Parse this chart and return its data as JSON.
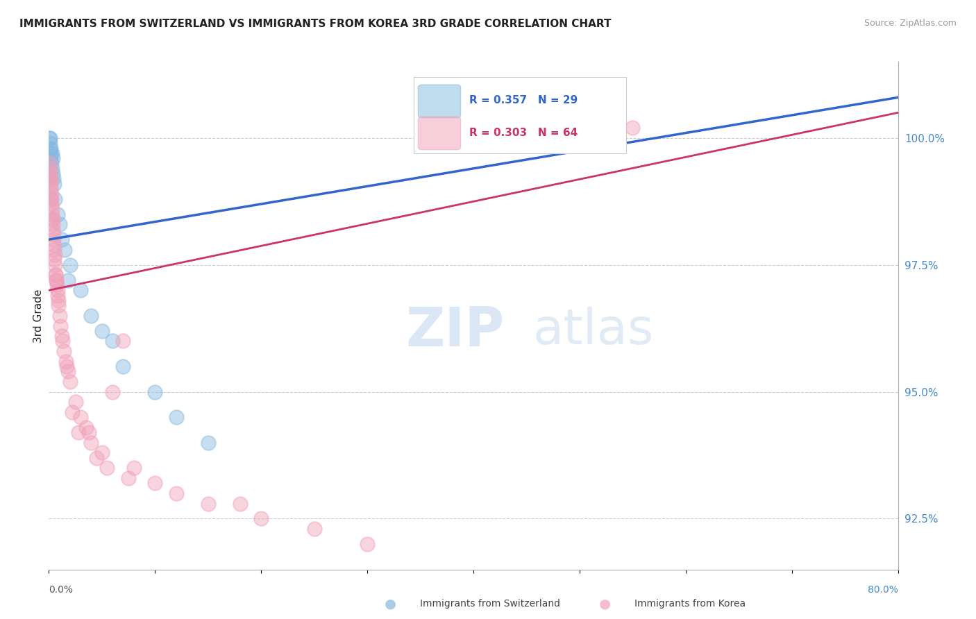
{
  "title": "IMMIGRANTS FROM SWITZERLAND VS IMMIGRANTS FROM KOREA 3RD GRADE CORRELATION CHART",
  "source": "Source: ZipAtlas.com",
  "ylabel": "3rd Grade",
  "xlim": [
    0.0,
    80.0
  ],
  "ylim": [
    91.5,
    101.5
  ],
  "ytick_vals": [
    92.5,
    95.0,
    97.5,
    100.0
  ],
  "ytick_labels": [
    "92.5%",
    "95.0%",
    "97.5%",
    "100.0%"
  ],
  "grid_color": "#cccccc",
  "background_color": "#ffffff",
  "switzerland_color": "#85b8e0",
  "korea_color": "#f0a0b8",
  "sw_line_color": "#3366cc",
  "ko_line_color": "#cc3366",
  "switzerland_R": 0.357,
  "switzerland_N": 29,
  "korea_R": 0.303,
  "korea_N": 64,
  "legend_label_switzerland": "Immigrants from Switzerland",
  "legend_label_korea": "Immigrants from Korea",
  "sw_line_x0": 0.0,
  "sw_line_y0": 98.0,
  "sw_line_x1": 80.0,
  "sw_line_y1": 100.8,
  "ko_line_x0": 0.0,
  "ko_line_y0": 97.0,
  "ko_line_x1": 80.0,
  "ko_line_y1": 100.5,
  "switzerland_x": [
    0.05,
    0.08,
    0.1,
    0.12,
    0.15,
    0.18,
    0.2,
    0.25,
    0.28,
    0.3,
    0.35,
    0.4,
    0.45,
    0.5,
    0.6,
    0.8,
    1.0,
    1.2,
    1.5,
    2.0,
    3.0,
    4.0,
    5.0,
    6.0,
    7.0,
    10.0,
    12.0,
    15.0,
    1.8
  ],
  "switzerland_y": [
    100.0,
    99.8,
    100.0,
    99.9,
    99.7,
    99.6,
    99.8,
    99.5,
    99.7,
    99.4,
    99.3,
    99.6,
    99.2,
    99.1,
    98.8,
    98.5,
    98.3,
    98.0,
    97.8,
    97.5,
    97.0,
    96.5,
    96.2,
    96.0,
    95.5,
    95.0,
    94.5,
    94.0,
    97.2
  ],
  "korea_x": [
    0.05,
    0.08,
    0.1,
    0.12,
    0.15,
    0.18,
    0.2,
    0.22,
    0.25,
    0.28,
    0.3,
    0.35,
    0.38,
    0.4,
    0.45,
    0.48,
    0.5,
    0.55,
    0.6,
    0.65,
    0.7,
    0.75,
    0.8,
    0.85,
    0.9,
    1.0,
    1.1,
    1.2,
    1.4,
    1.6,
    1.8,
    2.0,
    2.5,
    3.0,
    3.5,
    4.0,
    5.0,
    6.0,
    7.0,
    8.0,
    10.0,
    12.0,
    15.0,
    20.0,
    25.0,
    30.0,
    2.2,
    2.8,
    1.3,
    0.42,
    0.52,
    0.62,
    4.5,
    5.5,
    7.5,
    0.32,
    0.92,
    1.7,
    0.68,
    3.8,
    0.17,
    0.27,
    55.0,
    18.0
  ],
  "korea_y": [
    99.5,
    99.2,
    99.4,
    99.3,
    99.0,
    98.8,
    99.1,
    98.7,
    98.9,
    98.6,
    98.5,
    98.3,
    98.4,
    98.2,
    98.0,
    97.9,
    97.8,
    97.7,
    97.5,
    97.3,
    97.2,
    97.1,
    97.0,
    96.9,
    96.8,
    96.5,
    96.3,
    96.1,
    95.8,
    95.6,
    95.4,
    95.2,
    94.8,
    94.5,
    94.3,
    94.0,
    93.8,
    95.0,
    96.0,
    93.5,
    93.2,
    93.0,
    92.8,
    92.5,
    92.3,
    92.0,
    94.6,
    94.2,
    96.0,
    98.1,
    97.6,
    97.3,
    93.7,
    93.5,
    93.3,
    98.4,
    96.7,
    95.5,
    97.2,
    94.2,
    99.2,
    98.8,
    100.2,
    92.8
  ]
}
